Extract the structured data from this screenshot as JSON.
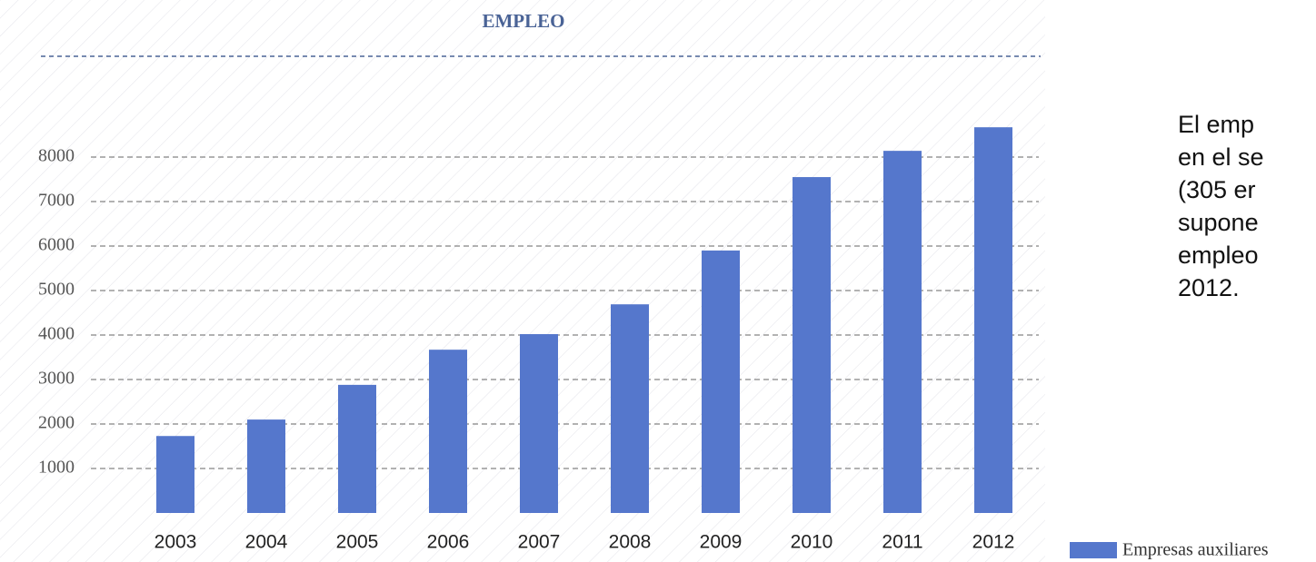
{
  "chart_data": {
    "type": "bar",
    "title": "EMPLEO",
    "categories": [
      "2003",
      "2004",
      "2005",
      "2006",
      "2007",
      "2008",
      "2009",
      "2010",
      "2011",
      "2012"
    ],
    "series": [
      {
        "name": "Empresas auxiliares",
        "color": "#5577cc",
        "values": [
          1730,
          2100,
          2880,
          3670,
          4020,
          4690,
          5900,
          7550,
          8140,
          8670
        ]
      }
    ],
    "ylim": [
      0,
      9000
    ],
    "yticks": [
      1000,
      2000,
      3000,
      4000,
      5000,
      6000,
      7000,
      8000
    ],
    "grid": true,
    "side_text": [
      "El emp",
      "en el se",
      "(305 er",
      "supone",
      "empleo",
      "2012."
    ]
  }
}
